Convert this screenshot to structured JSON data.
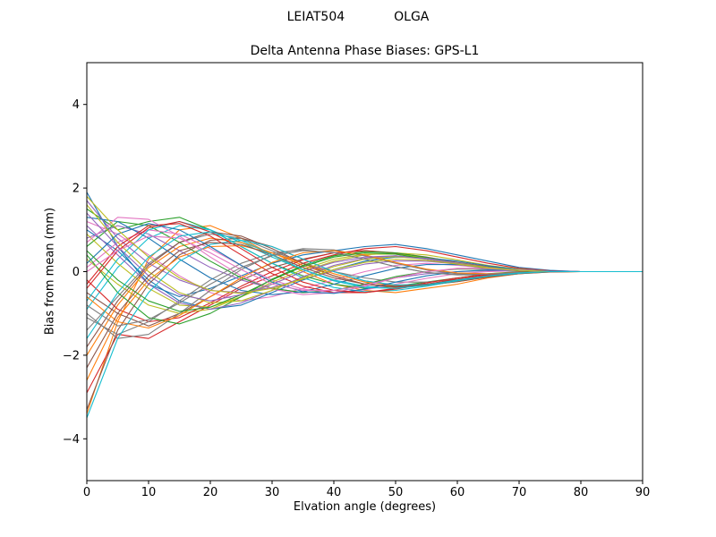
{
  "header": {
    "left": "LEIAT504",
    "right": "OLGA"
  },
  "chart_data": {
    "type": "line",
    "title": "Delta Antenna Phase Biases: GPS-L1",
    "suptitle_left": "LEIAT504",
    "suptitle_right": "OLGA",
    "xlabel": "Elvation angle (degrees)",
    "ylabel": "Bias from mean (mm)",
    "xlim": [
      0,
      90
    ],
    "ylim": [
      -5,
      5
    ],
    "xticks": [
      0,
      10,
      20,
      30,
      40,
      50,
      60,
      70,
      80,
      90
    ],
    "yticks": [
      -4,
      -2,
      0,
      2,
      4
    ],
    "grid": false,
    "legend": null,
    "palette": [
      "#1f77b4",
      "#ff7f0e",
      "#2ca02c",
      "#d62728",
      "#9467bd",
      "#8c564b",
      "#e377c2",
      "#7f7f7f",
      "#bcbd22",
      "#17becf"
    ],
    "x": [
      0,
      5,
      10,
      15,
      20,
      25,
      30,
      35,
      40,
      45,
      50,
      55,
      60,
      65,
      70,
      75,
      80,
      85,
      90
    ],
    "series": [
      {
        "values": [
          1.9,
          0.6,
          -0.3,
          -0.6,
          -0.4,
          -0.1,
          0.2,
          0.4,
          0.5,
          0.6,
          0.65,
          0.55,
          0.4,
          0.25,
          0.1,
          0.03,
          0,
          0,
          0
        ]
      },
      {
        "values": [
          -3.4,
          -1.2,
          0.3,
          1.0,
          1.1,
          0.8,
          0.4,
          0.0,
          -0.3,
          -0.45,
          -0.5,
          -0.4,
          -0.3,
          -0.15,
          -0.05,
          0,
          0,
          0,
          0
        ]
      },
      {
        "values": [
          1.5,
          1.0,
          1.2,
          1.3,
          1.0,
          0.6,
          0.2,
          -0.1,
          -0.3,
          -0.4,
          -0.35,
          -0.25,
          -0.15,
          -0.05,
          0,
          0,
          0,
          0,
          0
        ]
      },
      {
        "values": [
          -2.9,
          -1.5,
          -1.6,
          -1.2,
          -0.8,
          -0.4,
          -0.1,
          0.2,
          0.4,
          0.55,
          0.6,
          0.5,
          0.35,
          0.2,
          0.08,
          0.02,
          0,
          0,
          0
        ]
      },
      {
        "values": [
          0.8,
          1.1,
          0.9,
          0.5,
          0.1,
          -0.2,
          -0.4,
          -0.5,
          -0.45,
          -0.3,
          -0.15,
          -0.05,
          0,
          0.02,
          0.02,
          0,
          0,
          0,
          0
        ]
      },
      {
        "values": [
          -0.5,
          -1.0,
          -1.3,
          -1.0,
          -0.6,
          -0.2,
          0.1,
          0.3,
          0.45,
          0.5,
          0.45,
          0.35,
          0.22,
          0.12,
          0.05,
          0.01,
          0,
          0,
          0
        ]
      },
      {
        "values": [
          1.2,
          0.9,
          0.4,
          -0.1,
          -0.5,
          -0.7,
          -0.6,
          -0.4,
          -0.2,
          0.0,
          0.15,
          0.2,
          0.15,
          0.08,
          0.03,
          0,
          0,
          0,
          0
        ]
      },
      {
        "values": [
          -1.4,
          -0.6,
          0.2,
          0.7,
          0.9,
          0.8,
          0.5,
          0.2,
          0.0,
          -0.15,
          -0.25,
          -0.25,
          -0.18,
          -0.1,
          -0.04,
          0,
          0,
          0,
          0
        ]
      },
      {
        "values": [
          0.3,
          -0.3,
          -0.8,
          -1.0,
          -0.9,
          -0.6,
          -0.3,
          0.0,
          0.25,
          0.4,
          0.45,
          0.4,
          0.28,
          0.15,
          0.06,
          0.01,
          0,
          0,
          0
        ]
      },
      {
        "values": [
          -0.9,
          0.1,
          0.8,
          1.1,
          1.0,
          0.7,
          0.35,
          0.05,
          -0.2,
          -0.35,
          -0.4,
          -0.33,
          -0.22,
          -0.12,
          -0.04,
          0,
          0,
          0,
          0
        ]
      },
      {
        "values": [
          1.0,
          0.5,
          -0.2,
          -0.7,
          -0.9,
          -0.8,
          -0.5,
          -0.2,
          0.05,
          0.25,
          0.35,
          0.33,
          0.25,
          0.14,
          0.05,
          0.01,
          0,
          0,
          0
        ]
      },
      {
        "values": [
          -2.0,
          -0.8,
          0.1,
          0.6,
          0.8,
          0.7,
          0.45,
          0.15,
          -0.1,
          -0.3,
          -0.38,
          -0.33,
          -0.24,
          -0.13,
          -0.05,
          -0.01,
          0,
          0,
          0
        ]
      },
      {
        "values": [
          0.6,
          1.2,
          1.1,
          0.7,
          0.25,
          -0.15,
          -0.4,
          -0.5,
          -0.45,
          -0.3,
          -0.12,
          0.0,
          0.06,
          0.06,
          0.03,
          0,
          0,
          0,
          0
        ]
      },
      {
        "values": [
          -0.2,
          -0.9,
          -1.2,
          -1.1,
          -0.75,
          -0.35,
          0.0,
          0.28,
          0.45,
          0.5,
          0.44,
          0.32,
          0.2,
          0.1,
          0.03,
          0,
          0,
          0,
          0
        ]
      },
      {
        "values": [
          1.7,
          0.8,
          0.2,
          -0.2,
          -0.45,
          -0.5,
          -0.38,
          -0.18,
          0.02,
          0.18,
          0.26,
          0.25,
          0.18,
          0.1,
          0.04,
          0.01,
          0,
          0,
          0
        ]
      },
      {
        "values": [
          -3.3,
          -1.4,
          -0.3,
          0.4,
          0.75,
          0.8,
          0.6,
          0.3,
          0.0,
          -0.22,
          -0.33,
          -0.32,
          -0.24,
          -0.13,
          -0.05,
          -0.01,
          0,
          0,
          0
        ]
      },
      {
        "values": [
          0.1,
          0.7,
          1.0,
          0.9,
          0.55,
          0.15,
          -0.2,
          -0.42,
          -0.5,
          -0.44,
          -0.3,
          -0.16,
          -0.05,
          0,
          0.02,
          0.01,
          0,
          0,
          0
        ]
      },
      {
        "values": [
          -1.1,
          -1.5,
          -1.2,
          -0.7,
          -0.2,
          0.2,
          0.45,
          0.52,
          0.45,
          0.3,
          0.12,
          -0.02,
          -0.08,
          -0.07,
          -0.03,
          0,
          0,
          0,
          0
        ]
      },
      {
        "values": [
          0.9,
          0.2,
          -0.4,
          -0.8,
          -0.85,
          -0.6,
          -0.25,
          0.05,
          0.3,
          0.42,
          0.42,
          0.33,
          0.2,
          0.1,
          0.03,
          0,
          0,
          0,
          0
        ]
      },
      {
        "values": [
          -0.7,
          0.3,
          1.0,
          1.2,
          1.0,
          0.6,
          0.2,
          -0.15,
          -0.38,
          -0.48,
          -0.45,
          -0.35,
          -0.22,
          -0.1,
          -0.03,
          0,
          0,
          0,
          0
        ]
      },
      {
        "values": [
          1.3,
          1.2,
          0.8,
          0.3,
          -0.15,
          -0.45,
          -0.55,
          -0.48,
          -0.3,
          -0.1,
          0.08,
          0.17,
          0.17,
          0.11,
          0.04,
          0.01,
          0,
          0,
          0
        ]
      },
      {
        "values": [
          -2.6,
          -1.1,
          -0.2,
          0.35,
          0.6,
          0.62,
          0.45,
          0.2,
          -0.05,
          -0.25,
          -0.33,
          -0.3,
          -0.2,
          -0.1,
          -0.03,
          0,
          0,
          0,
          0
        ]
      },
      {
        "values": [
          0.4,
          -0.5,
          -1.1,
          -1.25,
          -1.0,
          -0.6,
          -0.18,
          0.15,
          0.38,
          0.48,
          0.45,
          0.34,
          0.2,
          0.09,
          0.02,
          0,
          0,
          0,
          0
        ]
      },
      {
        "values": [
          -0.3,
          0.6,
          1.1,
          1.15,
          0.85,
          0.4,
          -0.05,
          -0.35,
          -0.5,
          -0.5,
          -0.4,
          -0.27,
          -0.15,
          -0.06,
          -0.01,
          0,
          0,
          0,
          0
        ]
      },
      {
        "values": [
          1.1,
          0.4,
          -0.3,
          -0.75,
          -0.9,
          -0.75,
          -0.45,
          -0.12,
          0.15,
          0.32,
          0.38,
          0.32,
          0.21,
          0.1,
          0.03,
          0,
          0,
          0,
          0
        ]
      },
      {
        "values": [
          -1.8,
          -0.7,
          0.15,
          0.7,
          0.95,
          0.85,
          0.55,
          0.2,
          -0.1,
          -0.3,
          -0.37,
          -0.32,
          -0.21,
          -0.1,
          -0.03,
          0,
          0,
          0,
          0
        ]
      },
      {
        "values": [
          0.7,
          1.3,
          1.25,
          0.85,
          0.35,
          -0.1,
          -0.42,
          -0.55,
          -0.5,
          -0.35,
          -0.15,
          0.0,
          0.08,
          0.08,
          0.04,
          0.01,
          0,
          0,
          0
        ]
      },
      {
        "values": [
          -1.0,
          -1.6,
          -1.5,
          -1.0,
          -0.45,
          0.05,
          0.4,
          0.55,
          0.52,
          0.38,
          0.2,
          0.04,
          -0.05,
          -0.06,
          -0.03,
          0,
          0,
          0,
          0
        ]
      },
      {
        "values": [
          1.6,
          0.7,
          0.0,
          -0.5,
          -0.75,
          -0.7,
          -0.45,
          -0.15,
          0.12,
          0.3,
          0.36,
          0.3,
          0.2,
          0.1,
          0.03,
          0,
          0,
          0,
          0
        ]
      },
      {
        "values": [
          -3.5,
          -1.6,
          -0.5,
          0.25,
          0.65,
          0.75,
          0.6,
          0.3,
          0.0,
          -0.22,
          -0.32,
          -0.3,
          -0.21,
          -0.11,
          -0.04,
          0,
          0,
          0,
          0
        ]
      },
      {
        "values": [
          0.2,
          0.9,
          1.15,
          1.0,
          0.6,
          0.15,
          -0.25,
          -0.48,
          -0.52,
          -0.42,
          -0.25,
          -0.1,
          0.0,
          0.04,
          0.03,
          0.01,
          0,
          0,
          0
        ]
      },
      {
        "values": [
          -0.6,
          -1.2,
          -1.35,
          -1.05,
          -0.6,
          -0.15,
          0.22,
          0.45,
          0.5,
          0.4,
          0.22,
          0.06,
          -0.03,
          -0.05,
          -0.02,
          0,
          0,
          0,
          0
        ]
      },
      {
        "values": [
          0.5,
          -0.2,
          -0.7,
          -0.95,
          -0.85,
          -0.55,
          -0.2,
          0.12,
          0.35,
          0.45,
          0.42,
          0.3,
          0.18,
          0.08,
          0.02,
          0,
          0,
          0,
          0
        ]
      },
      {
        "values": [
          -0.4,
          0.5,
          1.05,
          1.2,
          0.95,
          0.55,
          0.1,
          -0.25,
          -0.45,
          -0.5,
          -0.42,
          -0.3,
          -0.18,
          -0.08,
          -0.02,
          0,
          0,
          0,
          0
        ]
      },
      {
        "values": [
          1.4,
          0.6,
          -0.1,
          -0.55,
          -0.7,
          -0.55,
          -0.3,
          0.0,
          0.22,
          0.35,
          0.38,
          0.3,
          0.19,
          0.09,
          0.03,
          0,
          0,
          0,
          0
        ]
      },
      {
        "values": [
          -2.3,
          -1.0,
          -0.1,
          0.5,
          0.7,
          0.65,
          0.4,
          0.1,
          -0.15,
          -0.3,
          -0.35,
          -0.3,
          -0.2,
          -0.1,
          -0.03,
          0,
          0,
          0,
          0
        ]
      },
      {
        "values": [
          0.0,
          0.5,
          0.85,
          0.8,
          0.45,
          0.05,
          -0.3,
          -0.45,
          -0.45,
          -0.33,
          -0.15,
          0.0,
          0.07,
          0.07,
          0.03,
          0,
          0,
          0,
          0
        ]
      },
      {
        "values": [
          -0.8,
          -1.3,
          -1.15,
          -0.75,
          -0.3,
          0.1,
          0.38,
          0.5,
          0.46,
          0.3,
          0.12,
          -0.02,
          -0.07,
          -0.06,
          -0.02,
          0,
          0,
          0,
          0
        ]
      },
      {
        "values": [
          1.8,
          1.0,
          0.35,
          -0.15,
          -0.45,
          -0.52,
          -0.4,
          -0.18,
          0.05,
          0.22,
          0.3,
          0.27,
          0.18,
          0.09,
          0.03,
          0,
          0,
          0,
          0
        ]
      },
      {
        "values": [
          -1.6,
          -0.5,
          0.35,
          0.85,
          0.95,
          0.75,
          0.4,
          0.05,
          -0.22,
          -0.38,
          -0.4,
          -0.32,
          -0.2,
          -0.1,
          -0.03,
          0,
          0,
          0,
          0
        ]
      }
    ]
  }
}
